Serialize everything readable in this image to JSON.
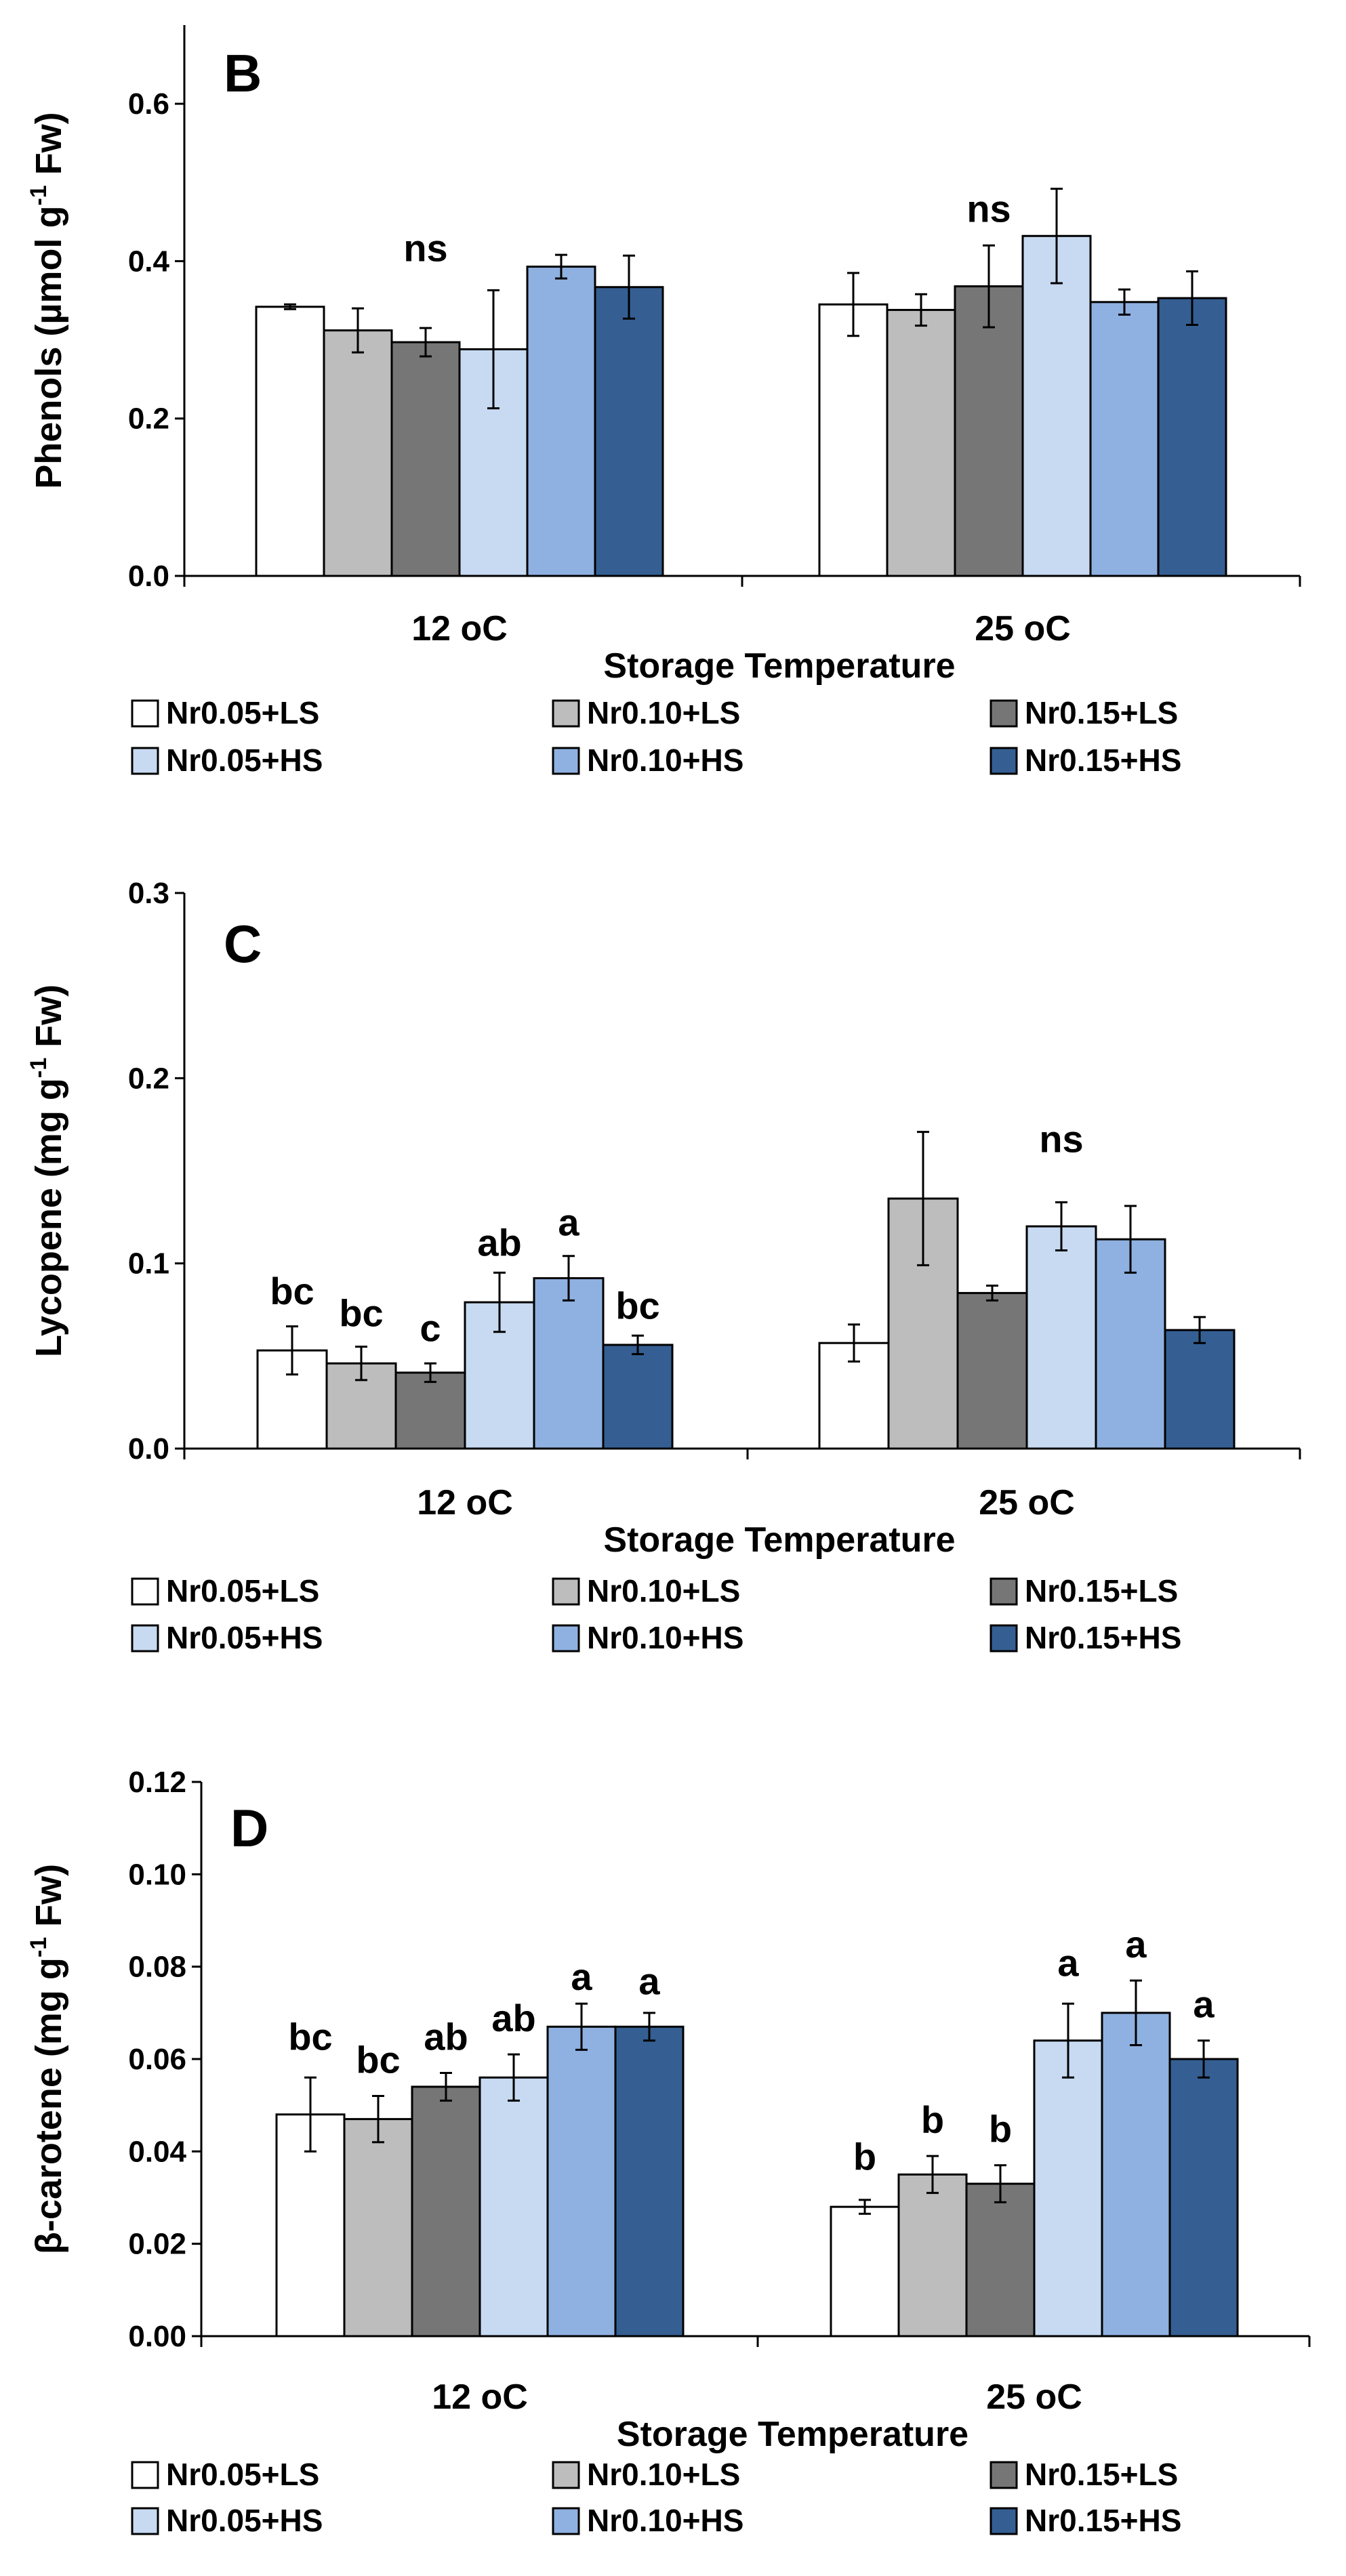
{
  "series_names": [
    "Nr0.05+LS",
    "Nr0.10+LS",
    "Nr0.15+LS",
    "Nr0.05+HS",
    "Nr0.10+HS",
    "Nr0.15+HS"
  ],
  "series_colors": [
    "#ffffff",
    "#bdbdbd",
    "#767676",
    "#c7daf2",
    "#8fb1e1",
    "#355f92"
  ],
  "chart_data": [
    {
      "type": "bar",
      "panel_label": "B",
      "categories": [
        "12 oC",
        "25 oC"
      ],
      "xlabel": "Storage Temperature",
      "ylabel": "Phenols (µmol g",
      "ylabel_sup": "-1",
      "ylabel_tail": " Fw)",
      "ylim": [
        0,
        0.7
      ],
      "yticks": [
        "0.0",
        "0.2",
        "0.4",
        "0.6"
      ],
      "series": [
        {
          "name": "Nr0.05+LS",
          "values": [
            0.342,
            0.345
          ],
          "errors": [
            0.003,
            0.04
          ]
        },
        {
          "name": "Nr0.10+LS",
          "values": [
            0.312,
            0.338
          ],
          "errors": [
            0.028,
            0.02
          ]
        },
        {
          "name": "Nr0.15+LS",
          "values": [
            0.297,
            0.368
          ],
          "errors": [
            0.018,
            0.052
          ]
        },
        {
          "name": "Nr0.05+HS",
          "values": [
            0.288,
            0.432
          ],
          "errors": [
            0.075,
            0.06
          ]
        },
        {
          "name": "Nr0.10+HS",
          "values": [
            0.393,
            0.348
          ],
          "errors": [
            0.015,
            0.016
          ]
        },
        {
          "name": "Nr0.15+HS",
          "values": [
            0.367,
            0.353
          ],
          "errors": [
            0.04,
            0.034
          ]
        }
      ],
      "annotations": [
        {
          "text": "ns",
          "category": 0,
          "series": 2,
          "value": 0.4
        },
        {
          "text": "ns",
          "category": 1,
          "series": 2,
          "value": 0.45
        }
      ]
    },
    {
      "type": "bar",
      "panel_label": "C",
      "categories": [
        "12 oC",
        "25 oC"
      ],
      "xlabel": "Storage Temperature",
      "ylabel": "Lycopene (mg g",
      "ylabel_sup": "-1",
      "ylabel_tail": " Fw)",
      "ylim": [
        0,
        0.3
      ],
      "yticks": [
        "0.0",
        "0.1",
        "0.2",
        "0.3"
      ],
      "series": [
        {
          "name": "Nr0.05+LS",
          "values": [
            0.053,
            0.057
          ],
          "errors": [
            0.013,
            0.01
          ]
        },
        {
          "name": "Nr0.10+LS",
          "values": [
            0.046,
            0.135
          ],
          "errors": [
            0.009,
            0.036
          ]
        },
        {
          "name": "Nr0.15+LS",
          "values": [
            0.041,
            0.084
          ],
          "errors": [
            0.005,
            0.004
          ]
        },
        {
          "name": "Nr0.05+HS",
          "values": [
            0.079,
            0.12
          ],
          "errors": [
            0.016,
            0.013
          ]
        },
        {
          "name": "Nr0.10+HS",
          "values": [
            0.092,
            0.113
          ],
          "errors": [
            0.012,
            0.018
          ]
        },
        {
          "name": "Nr0.15+HS",
          "values": [
            0.056,
            0.064
          ],
          "errors": [
            0.005,
            0.007
          ]
        }
      ],
      "annotations": [
        {
          "text": "bc",
          "category": 0,
          "series": 0,
          "value": 0.078
        },
        {
          "text": "bc",
          "category": 0,
          "series": 1,
          "value": 0.066
        },
        {
          "text": "c",
          "category": 0,
          "series": 2,
          "value": 0.058
        },
        {
          "text": "ab",
          "category": 0,
          "series": 3,
          "value": 0.104
        },
        {
          "text": "a",
          "category": 0,
          "series": 4,
          "value": 0.115
        },
        {
          "text": "bc",
          "category": 0,
          "series": 5,
          "value": 0.07
        },
        {
          "text": "ns",
          "category": 1,
          "series": 3,
          "value": 0.16
        }
      ]
    },
    {
      "type": "bar",
      "panel_label": "D",
      "categories": [
        "12 oC",
        "25 oC"
      ],
      "xlabel": "Storage Temperature",
      "ylabel": "β-carotene (mg g",
      "ylabel_sup": "-1",
      "ylabel_tail": " Fw)",
      "ylim": [
        0,
        0.12
      ],
      "yticks": [
        "0.00",
        "0.02",
        "0.04",
        "0.06",
        "0.08",
        "0.10",
        "0.12"
      ],
      "series": [
        {
          "name": "Nr0.05+LS",
          "values": [
            0.048,
            0.028
          ],
          "errors": [
            0.008,
            0.0015
          ]
        },
        {
          "name": "Nr0.10+LS",
          "values": [
            0.047,
            0.035
          ],
          "errors": [
            0.005,
            0.004
          ]
        },
        {
          "name": "Nr0.15+LS",
          "values": [
            0.054,
            0.033
          ],
          "errors": [
            0.003,
            0.004
          ]
        },
        {
          "name": "Nr0.05+HS",
          "values": [
            0.056,
            0.064
          ],
          "errors": [
            0.005,
            0.008
          ]
        },
        {
          "name": "Nr0.10+HS",
          "values": [
            0.067,
            0.07
          ],
          "errors": [
            0.005,
            0.007
          ]
        },
        {
          "name": "Nr0.15+HS",
          "values": [
            0.067,
            0.06
          ],
          "errors": [
            0.003,
            0.004
          ]
        }
      ],
      "annotations": [
        {
          "text": "bc",
          "category": 0,
          "series": 0,
          "value": 0.062
        },
        {
          "text": "bc",
          "category": 0,
          "series": 1,
          "value": 0.057
        },
        {
          "text": "ab",
          "category": 0,
          "series": 2,
          "value": 0.062
        },
        {
          "text": "ab",
          "category": 0,
          "series": 3,
          "value": 0.066
        },
        {
          "text": "a",
          "category": 0,
          "series": 4,
          "value": 0.075
        },
        {
          "text": "a",
          "category": 0,
          "series": 5,
          "value": 0.074
        },
        {
          "text": "b",
          "category": 1,
          "series": 0,
          "value": 0.036
        },
        {
          "text": "b",
          "category": 1,
          "series": 1,
          "value": 0.044
        },
        {
          "text": "b",
          "category": 1,
          "series": 2,
          "value": 0.042
        },
        {
          "text": "a",
          "category": 1,
          "series": 3,
          "value": 0.078
        },
        {
          "text": "a",
          "category": 1,
          "series": 4,
          "value": 0.082
        },
        {
          "text": "a",
          "category": 1,
          "series": 5,
          "value": 0.069
        }
      ]
    }
  ]
}
